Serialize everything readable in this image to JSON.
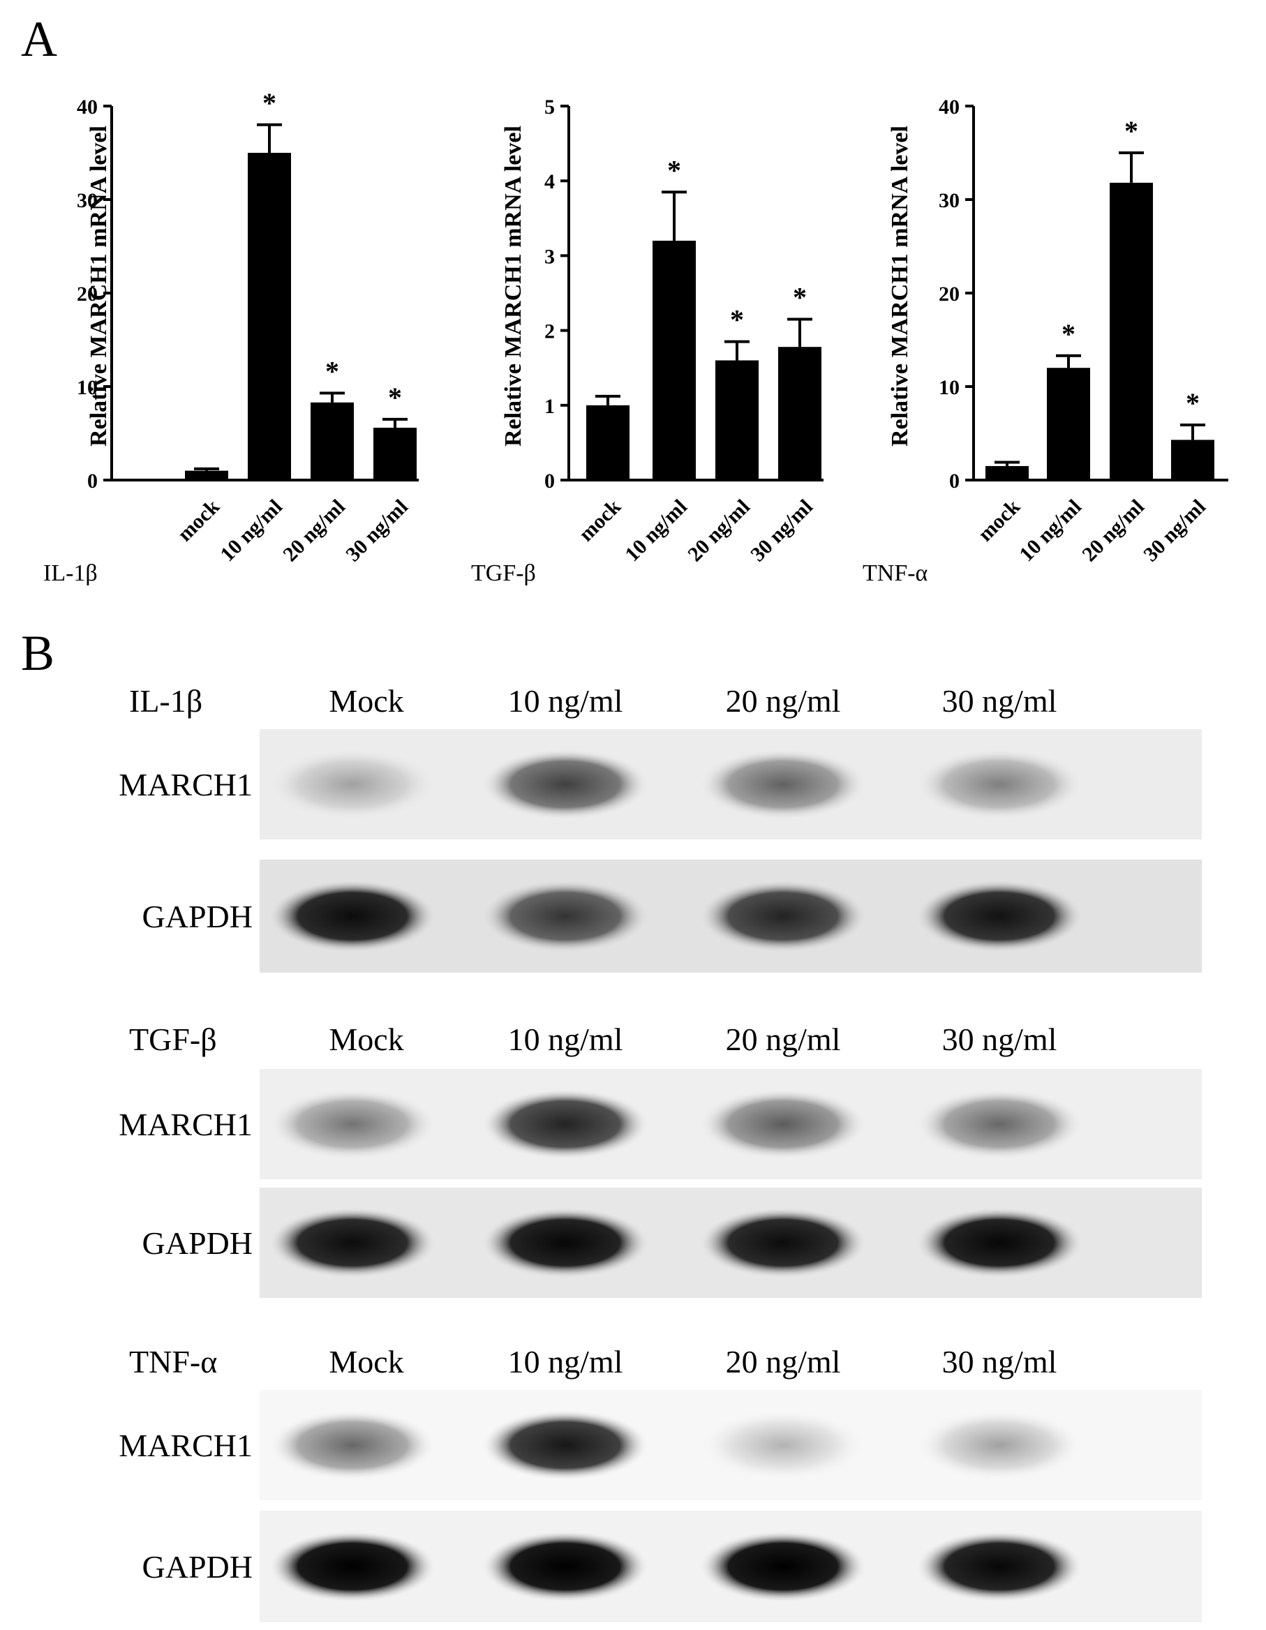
{
  "panels": {
    "a_letter": "A",
    "b_letter": "B"
  },
  "chart_data": [
    {
      "type": "bar",
      "ylabel": "Relative  MARCH1 mRNA level",
      "treatment_label": "IL-1β",
      "categories": [
        "mock",
        "10 ng/ml",
        "20 ng/ml",
        "30 ng/ml"
      ],
      "values": [
        1.0,
        35.0,
        8.3,
        5.6
      ],
      "errors": [
        0.2,
        3.0,
        1.0,
        0.9
      ],
      "significant": [
        false,
        true,
        true,
        true
      ],
      "sig_mark": "*",
      "ylim": [
        0,
        40
      ],
      "yticks": [
        "0",
        "10",
        "20",
        "30",
        "40"
      ]
    },
    {
      "type": "bar",
      "ylabel": "Relative  MARCH1 mRNA level",
      "treatment_label": "TGF-β",
      "categories": [
        "mock",
        "10 ng/ml",
        "20 ng/ml",
        "30 ng/ml"
      ],
      "values": [
        1.0,
        3.2,
        1.6,
        1.78
      ],
      "errors": [
        0.12,
        0.65,
        0.25,
        0.37
      ],
      "significant": [
        false,
        true,
        true,
        true
      ],
      "sig_mark": "*",
      "ylim": [
        0,
        5
      ],
      "yticks": [
        "0",
        "1",
        "2",
        "3",
        "4",
        "5"
      ]
    },
    {
      "type": "bar",
      "ylabel": "Relative  MARCH1 mRNA level",
      "treatment_label": "TNF-α",
      "categories": [
        "mock",
        "10 ng/ml",
        "20 ng/ml",
        "30 ng/ml"
      ],
      "values": [
        1.5,
        12.0,
        31.8,
        4.3
      ],
      "errors": [
        0.4,
        1.3,
        3.2,
        1.6
      ],
      "significant": [
        false,
        true,
        true,
        true
      ],
      "sig_mark": "*",
      "ylim": [
        0,
        40
      ],
      "yticks": [
        "0",
        "10",
        "20",
        "30",
        "40"
      ]
    }
  ],
  "blots": [
    {
      "treatment": "IL-1β",
      "lanes": [
        "Mock",
        "10 ng/ml",
        "20 ng/ml",
        "30 ng/ml"
      ],
      "rows": [
        {
          "label": "MARCH1",
          "intensity": [
            0.3,
            0.72,
            0.58,
            0.45
          ],
          "background": 0.12
        },
        {
          "label": "GAPDH",
          "intensity": [
            0.95,
            0.78,
            0.85,
            0.92
          ],
          "background": 0.18
        }
      ]
    },
    {
      "treatment": "TGF-β",
      "lanes": [
        "Mock",
        "10 ng/ml",
        "20 ng/ml",
        "30 ng/ml"
      ],
      "rows": [
        {
          "label": "MARCH1",
          "intensity": [
            0.5,
            0.85,
            0.6,
            0.55
          ],
          "background": 0.1
        },
        {
          "label": "GAPDH",
          "intensity": [
            0.95,
            0.97,
            0.95,
            0.97
          ],
          "background": 0.15
        }
      ]
    },
    {
      "treatment": "TNF-α",
      "lanes": [
        "Mock",
        "10 ng/ml",
        "20 ng/ml",
        "30 ng/ml"
      ],
      "rows": [
        {
          "label": "MARCH1",
          "intensity": [
            0.55,
            0.9,
            0.22,
            0.3
          ],
          "background": 0.05
        },
        {
          "label": "GAPDH",
          "intensity": [
            1.0,
            1.0,
            1.0,
            0.97
          ],
          "background": 0.08
        }
      ]
    }
  ]
}
